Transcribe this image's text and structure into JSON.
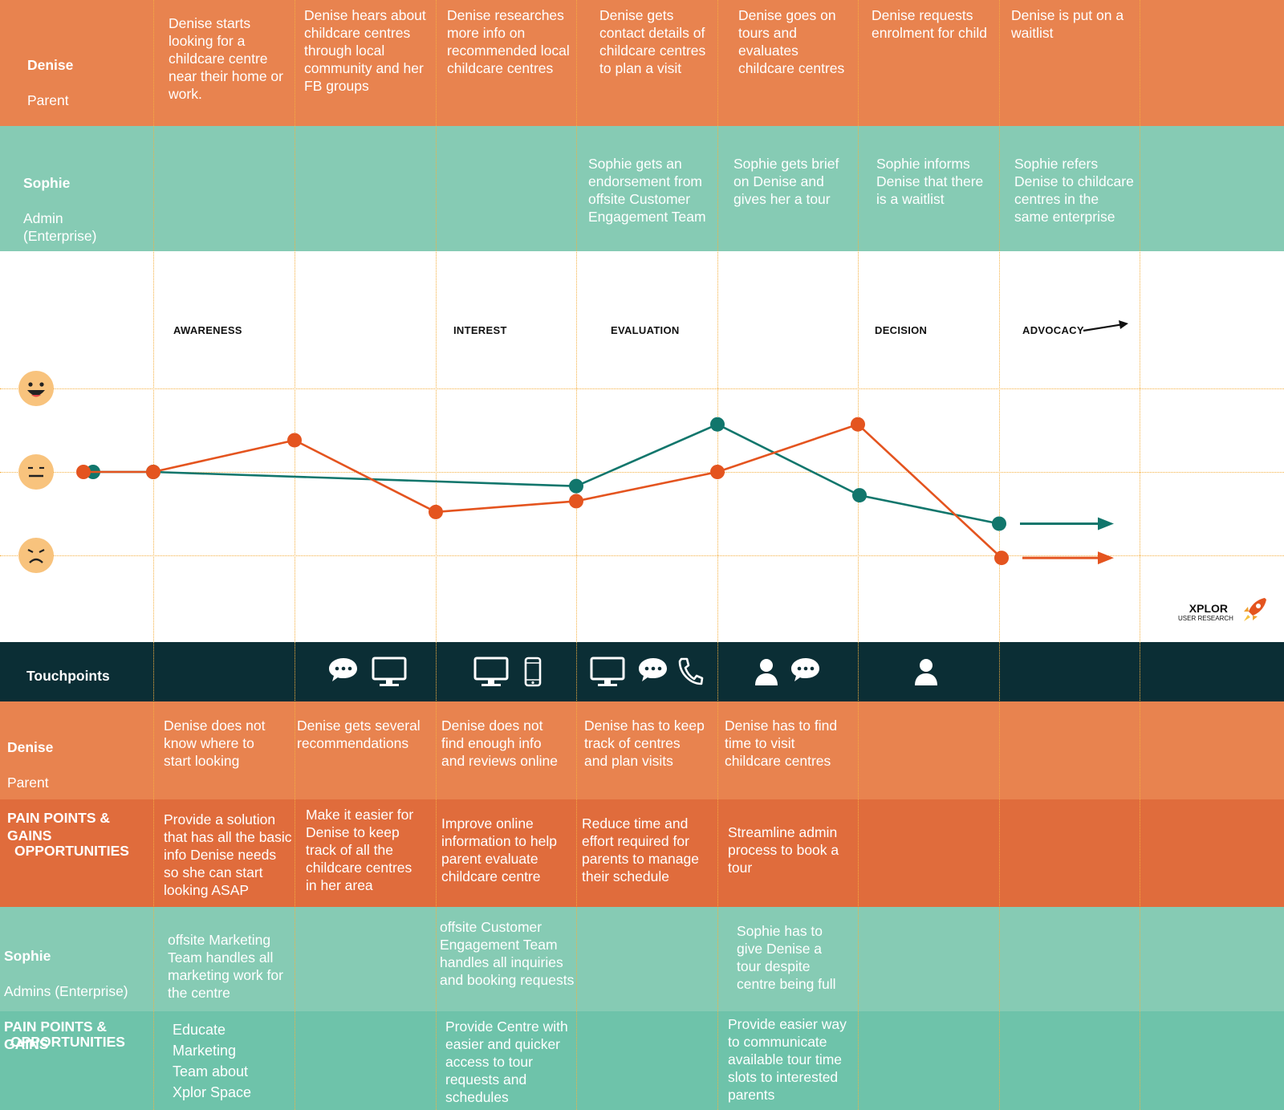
{
  "colors": {
    "denise": "#e8834f",
    "denise_opportunity": "#e06c3c",
    "sophie": "#86cbb4",
    "sophie_opportunity": "#6ec3aa",
    "touchpoints_bg": "#0b2e35",
    "denise_line": "#e4541f",
    "sophie_line": "#11766c",
    "face": "#f8c37d"
  },
  "rows": {
    "denise_steps": {
      "label_name": "Denise",
      "label_role": "Parent",
      "cells": [
        "Denise starts looking for a childcare centre near their home or work.",
        "Denise hears about childcare centres through local community and her FB groups",
        "Denise researches more info on recommended local childcare centres",
        "Denise gets contact details of childcare centres to plan a visit",
        "Denise goes on tours and evaluates childcare centres",
        "Denise requests enrolment for child",
        "Denise is put on a waitlist"
      ]
    },
    "sophie_steps": {
      "label_name": "Sophie",
      "label_role": "Admin\n(Enterprise)",
      "cells": [
        "",
        "",
        "",
        "Sophie gets an endorsement from offsite Customer Engagement Team",
        "Sophie gets brief on Denise and gives her a tour",
        "Sophie informs Denise that there is a waitlist",
        "Sophie refers Denise to childcare centres in the same enterprise"
      ]
    },
    "denise_pain": {
      "label_name": "Denise",
      "label_role": "Parent",
      "label_title": "PAIN POINTS &\nGAINS",
      "cells": [
        "Denise does not know where to start looking",
        "Denise gets several recommendations",
        "Denise does not find enough info and reviews online",
        "Denise has to keep track of centres and plan visits",
        "Denise has to find time  to visit childcare centres",
        "",
        ""
      ]
    },
    "denise_opportunities": {
      "label_title": "OPPORTUNITIES",
      "cells": [
        "Provide a solution that has all the basic info Denise needs so she can start looking ASAP",
        "Make it easier for Denise to keep track of all the childcare centres in her area",
        "Improve online information to help parent evaluate childcare centre",
        "Reduce time  and effort required for parents to manage their schedule",
        "Streamline admin process to book a tour",
        "",
        ""
      ]
    },
    "sophie_pain": {
      "label_name": "Sophie",
      "label_role": "Admins (Enterprise)",
      "label_title": "PAIN POINTS &\nGAINS",
      "cells": [
        "offsite Marketing Team handles all marketing work for the centre",
        "",
        "offsite Customer Engagement Team handles all inquiries and booking requests",
        "",
        "Sophie has to give Denise a tour despite centre being full",
        "",
        ""
      ]
    },
    "sophie_opportunities": {
      "label_title": "OPPORTUNITIES",
      "cells": [
        "Educate\nMarketing\nTeam about\nXplor Space",
        "",
        "Provide Centre with easier and quicker access to tour requests and schedules",
        "",
        "Provide easier way to communicate available tour time slots to interested parents",
        "",
        ""
      ]
    }
  },
  "stages": [
    "AWARENESS",
    "INTEREST",
    "EVALUATION",
    "DECISION",
    "ADVOCACY"
  ],
  "emotion_levels": [
    "happy",
    "neutral",
    "sad"
  ],
  "emotion_curve": {
    "steps": [
      "start",
      "1",
      "2",
      "3",
      "4",
      "5",
      "6",
      "7"
    ],
    "denise": [
      0,
      0,
      0.38,
      -0.48,
      -0.35,
      0,
      0.57,
      -1.03
    ],
    "sophie": [
      0,
      0,
      null,
      null,
      -0.17,
      0.57,
      -0.28,
      -0.62
    ]
  },
  "touchpoints": {
    "label": "Touchpoints",
    "cells": [
      [],
      [
        "chat-icon",
        "monitor-icon"
      ],
      [
        "monitor-icon",
        "phone-icon"
      ],
      [
        "monitor-icon",
        "chat-icon",
        "call-icon"
      ],
      [
        "person-icon",
        "chat-icon"
      ],
      [
        "person-icon"
      ],
      []
    ]
  },
  "brand": {
    "name": "XPLOR",
    "subtitle": "USER RESEARCH",
    "icon": "rocket-icon"
  }
}
